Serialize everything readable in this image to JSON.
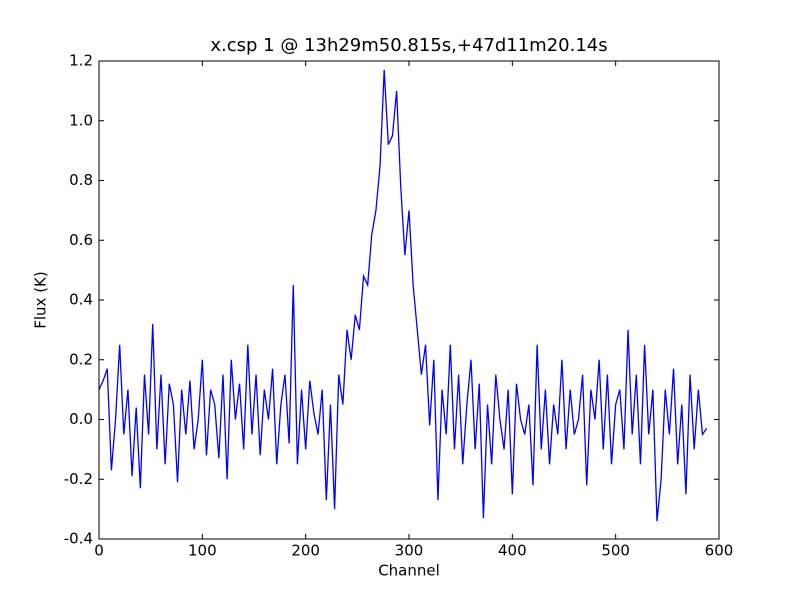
{
  "chart_data": {
    "type": "line",
    "title": "x.csp 1 @ 13h29m50.815s,+47d11m20.14s",
    "x_label": "Channel",
    "y_label": "Flux (K)",
    "xlim": [
      0,
      600
    ],
    "xticks": [
      0,
      100,
      200,
      300,
      400,
      500,
      600
    ],
    "ylim": [
      -0.4,
      1.2
    ],
    "yticks": [
      -0.4,
      -0.2,
      {
        "value": 0,
        "label": "0.0"
      },
      0.2,
      0.4,
      0.6,
      0.8,
      {
        "value": 1,
        "label": "1.0"
      },
      1.2
    ],
    "x": [
      0,
      4,
      8,
      12,
      16,
      20,
      24,
      28,
      32,
      36,
      40,
      44,
      48,
      52,
      56,
      60,
      64,
      68,
      72,
      76,
      80,
      84,
      88,
      92,
      96,
      100,
      104,
      108,
      112,
      116,
      120,
      124,
      128,
      132,
      136,
      140,
      144,
      148,
      152,
      156,
      160,
      164,
      168,
      172,
      176,
      180,
      184,
      188,
      192,
      196,
      200,
      204,
      208,
      212,
      216,
      220,
      224,
      228,
      232,
      236,
      240,
      244,
      248,
      252,
      256,
      260,
      264,
      268,
      272,
      276,
      280,
      284,
      288,
      292,
      296,
      300,
      304,
      308,
      312,
      316,
      320,
      324,
      328,
      332,
      336,
      340,
      344,
      348,
      352,
      356,
      360,
      364,
      368,
      372,
      376,
      380,
      384,
      388,
      392,
      396,
      400,
      404,
      408,
      412,
      416,
      420,
      424,
      428,
      432,
      436,
      440,
      444,
      448,
      452,
      456,
      460,
      464,
      468,
      472,
      476,
      480,
      484,
      488,
      492,
      496,
      500,
      504,
      508,
      512,
      516,
      520,
      524,
      528,
      532,
      536,
      540,
      544,
      548,
      552,
      556,
      560,
      564,
      568,
      572,
      576,
      580,
      584,
      588
    ],
    "series": [
      {
        "color": "#0000ff",
        "values": [
          0.1,
          0.13,
          0.17,
          -0.17,
          0.0,
          0.25,
          -0.05,
          0.1,
          -0.19,
          0.04,
          -0.23,
          0.15,
          -0.05,
          0.32,
          -0.1,
          0.15,
          -0.15,
          0.12,
          0.05,
          -0.21,
          0.1,
          -0.05,
          0.13,
          -0.1,
          0.0,
          0.2,
          -0.12,
          0.1,
          0.05,
          -0.13,
          0.15,
          -0.2,
          0.2,
          0.0,
          0.12,
          -0.1,
          0.25,
          -0.05,
          0.15,
          -0.12,
          0.1,
          0.0,
          0.17,
          -0.15,
          0.05,
          0.15,
          -0.08,
          0.45,
          -0.15,
          0.1,
          -0.1,
          0.13,
          0.02,
          -0.05,
          0.1,
          -0.27,
          0.05,
          -0.3,
          0.15,
          0.05,
          0.3,
          0.2,
          0.35,
          0.3,
          0.48,
          0.45,
          0.62,
          0.7,
          0.85,
          1.17,
          0.92,
          0.95,
          1.1,
          0.78,
          0.55,
          0.7,
          0.45,
          0.3,
          0.15,
          0.25,
          -0.02,
          0.2,
          -0.27,
          0.1,
          -0.05,
          0.25,
          -0.1,
          0.15,
          -0.15,
          0.05,
          0.2,
          -0.1,
          0.12,
          -0.33,
          0.05,
          -0.15,
          0.15,
          0.0,
          -0.1,
          0.1,
          -0.25,
          0.12,
          0.0,
          -0.05,
          0.05,
          -0.22,
          0.25,
          -0.1,
          0.1,
          -0.15,
          0.05,
          -0.05,
          0.2,
          -0.1,
          0.1,
          -0.05,
          0.0,
          0.15,
          -0.22,
          0.1,
          0.0,
          0.2,
          -0.1,
          0.15,
          -0.15,
          0.05,
          0.1,
          -0.1,
          0.3,
          -0.05,
          0.15,
          -0.15,
          0.25,
          -0.05,
          0.1,
          -0.34,
          -0.2,
          0.1,
          -0.05,
          0.17,
          -0.15,
          0.05,
          -0.25,
          0.15,
          -0.1,
          0.1,
          -0.05,
          -0.03
        ]
      }
    ]
  }
}
